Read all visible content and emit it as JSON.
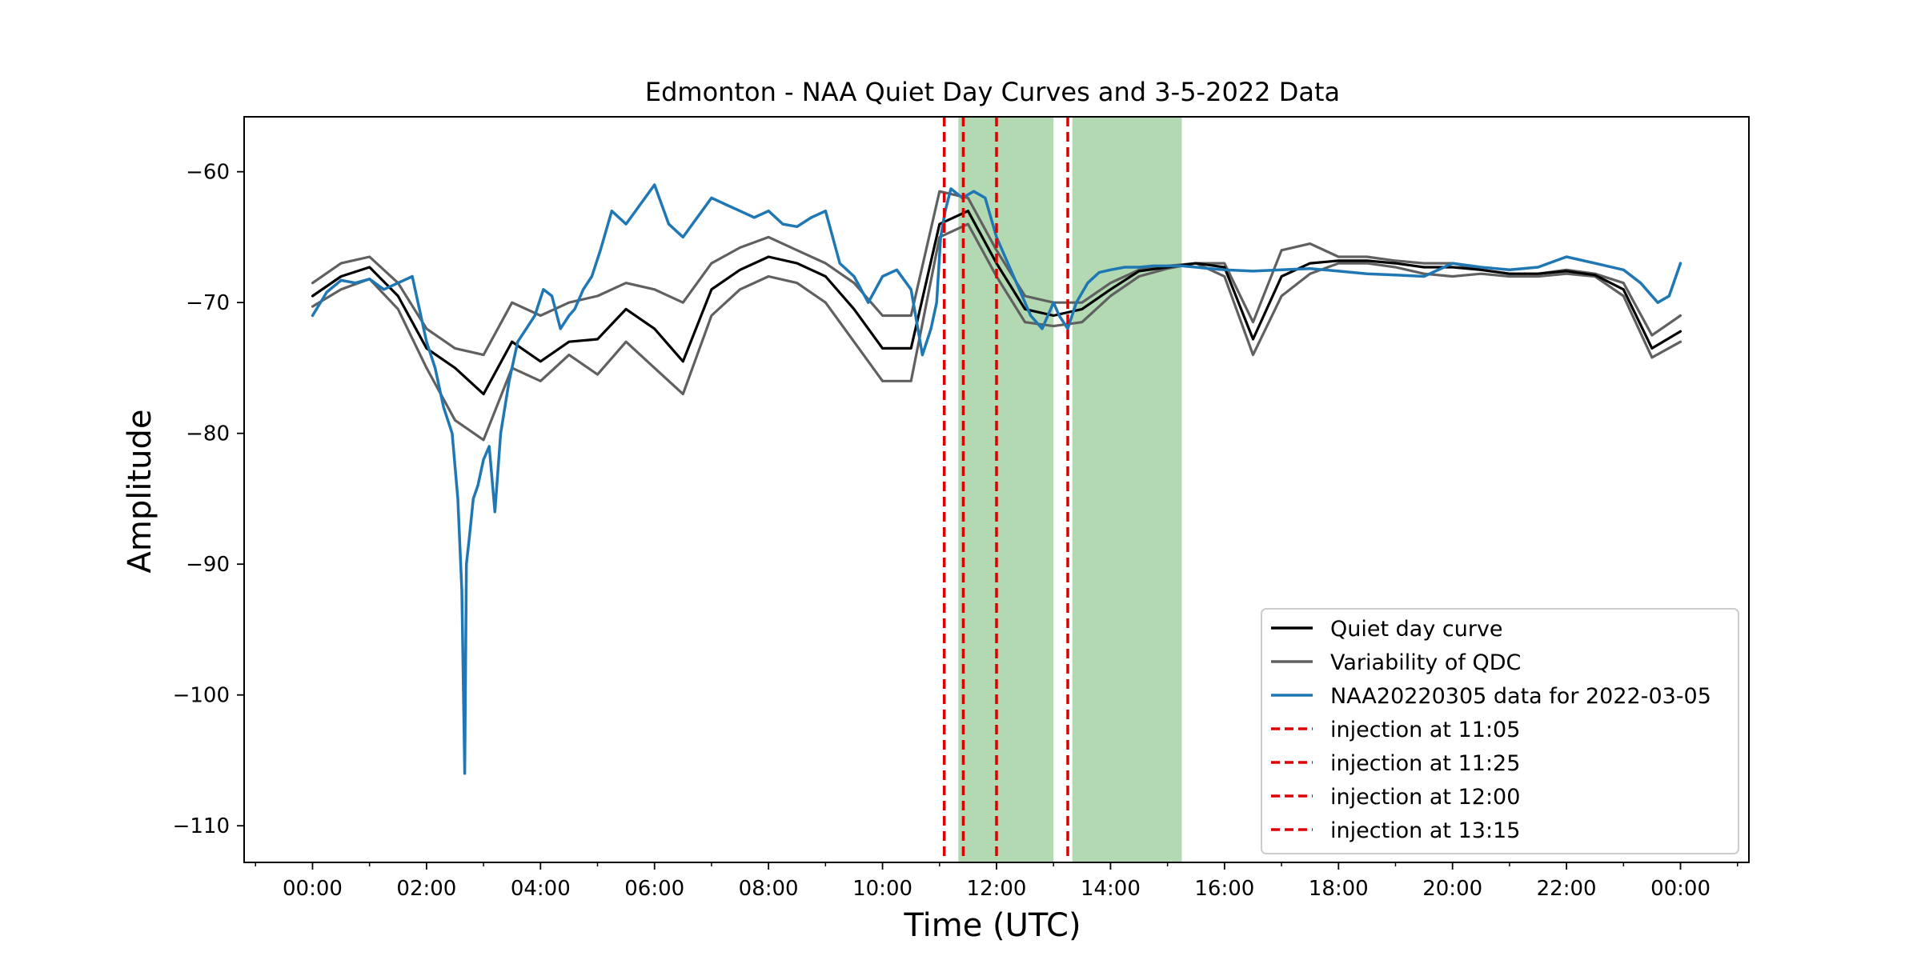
{
  "chart_data": {
    "type": "line",
    "title": "Edmonton - NAA Quiet Day Curves and 3-5-2022 Data",
    "xlabel": "Time (UTC)",
    "ylabel": "Amplitude",
    "xlim_hours": [
      -1.2,
      25.2
    ],
    "ylim": [
      -112.8,
      -55.8
    ],
    "x_ticks": [
      {
        "hour": 0,
        "label": "00:00"
      },
      {
        "hour": 2,
        "label": "02:00"
      },
      {
        "hour": 4,
        "label": "04:00"
      },
      {
        "hour": 6,
        "label": "06:00"
      },
      {
        "hour": 8,
        "label": "08:00"
      },
      {
        "hour": 10,
        "label": "10:00"
      },
      {
        "hour": 12,
        "label": "12:00"
      },
      {
        "hour": 14,
        "label": "14:00"
      },
      {
        "hour": 16,
        "label": "16:00"
      },
      {
        "hour": 18,
        "label": "18:00"
      },
      {
        "hour": 20,
        "label": "20:00"
      },
      {
        "hour": 22,
        "label": "22:00"
      },
      {
        "hour": 24,
        "label": "00:00"
      }
    ],
    "y_ticks": [
      {
        "value": -60,
        "label": "−60"
      },
      {
        "value": -70,
        "label": "−70"
      },
      {
        "value": -80,
        "label": "−80"
      },
      {
        "value": -90,
        "label": "−90"
      },
      {
        "value": -100,
        "label": "−100"
      },
      {
        "value": -110,
        "label": "−110"
      }
    ],
    "shaded_regions": [
      {
        "start_hour": 11.33,
        "end_hour": 13.0,
        "color": "#b2d9b2"
      },
      {
        "start_hour": 13.33,
        "end_hour": 15.25,
        "color": "#b2d9b2"
      }
    ],
    "vlines": [
      {
        "hour": 11.083,
        "label": "injection at 11:05",
        "color": "#dd0000"
      },
      {
        "hour": 11.417,
        "label": "injection at 11:25",
        "color": "#dd0000"
      },
      {
        "hour": 12.0,
        "label": "injection at 12:00",
        "color": "#dd0000"
      },
      {
        "hour": 13.25,
        "label": "injection at 13:15",
        "color": "#dd0000"
      }
    ],
    "series": [
      {
        "name": "Quiet day curve",
        "color": "#000000",
        "x": [
          0,
          0.5,
          1,
          1.5,
          2,
          2.5,
          3,
          3.5,
          4,
          4.5,
          5,
          5.5,
          6,
          6.5,
          7,
          7.5,
          8,
          8.5,
          9,
          9.5,
          10,
          10.5,
          11,
          11.5,
          12,
          12.5,
          13,
          13.5,
          14,
          14.5,
          15,
          15.5,
          16,
          16.5,
          17,
          17.5,
          18,
          18.5,
          19,
          19.5,
          20,
          20.5,
          21,
          21.5,
          22,
          22.5,
          23,
          23.5,
          24
        ],
        "values": [
          -69.5,
          -68,
          -67.3,
          -69.5,
          -73.5,
          -75,
          -77,
          -73,
          -74.5,
          -73,
          -72.8,
          -70.5,
          -72,
          -74.5,
          -69,
          -67.5,
          -66.5,
          -67,
          -68,
          -70.5,
          -73.5,
          -73.5,
          -64,
          -63,
          -67,
          -70.5,
          -71,
          -70.5,
          -69,
          -67.6,
          -67.3,
          -67,
          -67.3,
          -72.8,
          -68,
          -67,
          -66.8,
          -66.8,
          -67,
          -67.3,
          -67.3,
          -67.5,
          -67.8,
          -67.8,
          -67.6,
          -67.9,
          -69,
          -73.5,
          -72.2
        ]
      },
      {
        "name": "Variability of QDC",
        "color": "#606060",
        "x": [
          0,
          0.5,
          1,
          1.5,
          2,
          2.5,
          3,
          3.5,
          4,
          4.5,
          5,
          5.5,
          6,
          6.5,
          7,
          7.5,
          8,
          8.5,
          9,
          9.5,
          10,
          10.5,
          11,
          11.5,
          12,
          12.5,
          13,
          13.5,
          14,
          14.5,
          15,
          15.5,
          16,
          16.5,
          17,
          17.5,
          18,
          18.5,
          19,
          19.5,
          20,
          20.5,
          21,
          21.5,
          22,
          22.5,
          23,
          23.5,
          24
        ],
        "values": [
          -68.5,
          -67,
          -66.5,
          -68.5,
          -72,
          -73.5,
          -74,
          -70,
          -71,
          -70,
          -69.5,
          -68.5,
          -69,
          -70,
          -67,
          -65.8,
          -65,
          -66,
          -67,
          -68.5,
          -71,
          -71,
          -61.5,
          -62,
          -66,
          -69.5,
          -70,
          -70,
          -68.5,
          -67.5,
          -67.2,
          -67,
          -67,
          -71.5,
          -66,
          -65.5,
          -66.5,
          -66.5,
          -66.8,
          -67,
          -67,
          -67.5,
          -67.8,
          -67.8,
          -67.5,
          -67.8,
          -68.5,
          -72.5,
          -71
        ]
      },
      {
        "name": "Variability of QDC lower",
        "color": "#606060",
        "x": [
          0,
          0.5,
          1,
          1.5,
          2,
          2.5,
          3,
          3.5,
          4,
          4.5,
          5,
          5.5,
          6,
          6.5,
          7,
          7.5,
          8,
          8.5,
          9,
          9.5,
          10,
          10.5,
          11,
          11.5,
          12,
          12.5,
          13,
          13.5,
          14,
          14.5,
          15,
          15.5,
          16,
          16.5,
          17,
          17.5,
          18,
          18.5,
          19,
          19.5,
          20,
          20.5,
          21,
          21.5,
          22,
          22.5,
          23,
          23.5,
          24
        ],
        "values": [
          -70.3,
          -69,
          -68.2,
          -70.5,
          -75,
          -79,
          -80.5,
          -75,
          -76,
          -74,
          -75.5,
          -73,
          -75,
          -77,
          -71,
          -69,
          -68,
          -68.5,
          -70,
          -73,
          -76,
          -76,
          -65,
          -64,
          -68,
          -71.5,
          -71.8,
          -71.5,
          -69.5,
          -68,
          -67.4,
          -67,
          -68,
          -74,
          -69.5,
          -67.8,
          -67,
          -67,
          -67.3,
          -67.8,
          -68,
          -67.8,
          -68,
          -68,
          -67.8,
          -68,
          -69.5,
          -74.2,
          -73
        ]
      },
      {
        "name": "NAA20220305 data for 2022-03-05",
        "color": "#1f77b4",
        "x": [
          0,
          0.25,
          0.5,
          0.75,
          1,
          1.25,
          1.5,
          1.75,
          2,
          2.15,
          2.3,
          2.45,
          2.55,
          2.62,
          2.67,
          2.7,
          2.75,
          2.82,
          2.9,
          3,
          3.1,
          3.2,
          3.3,
          3.45,
          3.6,
          3.75,
          3.9,
          4.05,
          4.2,
          4.35,
          4.5,
          4.6,
          4.75,
          4.9,
          5.05,
          5.25,
          5.5,
          5.75,
          6,
          6.25,
          6.5,
          6.75,
          7,
          7.25,
          7.5,
          7.75,
          8,
          8.25,
          8.5,
          8.75,
          9,
          9.25,
          9.5,
          9.75,
          10,
          10.25,
          10.5,
          10.7,
          10.85,
          10.95,
          11.02,
          11.1,
          11.2,
          11.4,
          11.6,
          11.8,
          12,
          12.2,
          12.4,
          12.6,
          12.8,
          13,
          13.1,
          13.25,
          13.4,
          13.6,
          13.8,
          14,
          14.25,
          14.5,
          14.75,
          15,
          15.25,
          15.5,
          15.75,
          16,
          16.5,
          17,
          17.5,
          18,
          18.5,
          19,
          19.5,
          20,
          20.5,
          21,
          21.5,
          22,
          22.5,
          23,
          23.3,
          23.6,
          23.8,
          24
        ],
        "values": [
          -71,
          -69.2,
          -68.3,
          -68.5,
          -68.2,
          -69,
          -68.5,
          -68,
          -73,
          -75,
          -78,
          -80,
          -85,
          -92,
          -106,
          -90,
          -88,
          -85,
          -84,
          -82,
          -81,
          -86,
          -80,
          -76,
          -73,
          -72,
          -71,
          -69,
          -69.5,
          -72,
          -71,
          -70.5,
          -69,
          -68,
          -66,
          -63,
          -64,
          -62.5,
          -61,
          -64,
          -65,
          -63.5,
          -62,
          -62.5,
          -63,
          -63.5,
          -63,
          -64,
          -64.2,
          -63.5,
          -63,
          -67,
          -68,
          -70,
          -68,
          -67.5,
          -69,
          -74,
          -72,
          -70,
          -65,
          -63,
          -61.3,
          -62,
          -61.5,
          -62,
          -65,
          -67,
          -69,
          -71,
          -72,
          -70,
          -71,
          -72,
          -70,
          -68.5,
          -67.7,
          -67.5,
          -67.3,
          -67.3,
          -67.2,
          -67.2,
          -67.2,
          -67.3,
          -67.4,
          -67.5,
          -67.6,
          -67.5,
          -67.4,
          -67.6,
          -67.8,
          -67.9,
          -68,
          -67,
          -67.3,
          -67.5,
          -67.3,
          -66.5,
          -67,
          -67.5,
          -68.5,
          -70,
          -69.5,
          -67
        ]
      }
    ],
    "legend": {
      "placement": "lower-right",
      "entries": [
        {
          "label": "Quiet day curve",
          "color": "#000000",
          "style": "solid"
        },
        {
          "label": "Variability of QDC",
          "color": "#606060",
          "style": "solid"
        },
        {
          "label": "NAA20220305 data for 2022-03-05",
          "color": "#1f77b4",
          "style": "solid"
        },
        {
          "label": "injection at 11:05",
          "color": "#dd0000",
          "style": "dashed"
        },
        {
          "label": "injection at 11:25",
          "color": "#dd0000",
          "style": "dashed"
        },
        {
          "label": "injection at 12:00",
          "color": "#dd0000",
          "style": "dashed"
        },
        {
          "label": "injection at 13:15",
          "color": "#dd0000",
          "style": "dashed"
        }
      ]
    }
  }
}
